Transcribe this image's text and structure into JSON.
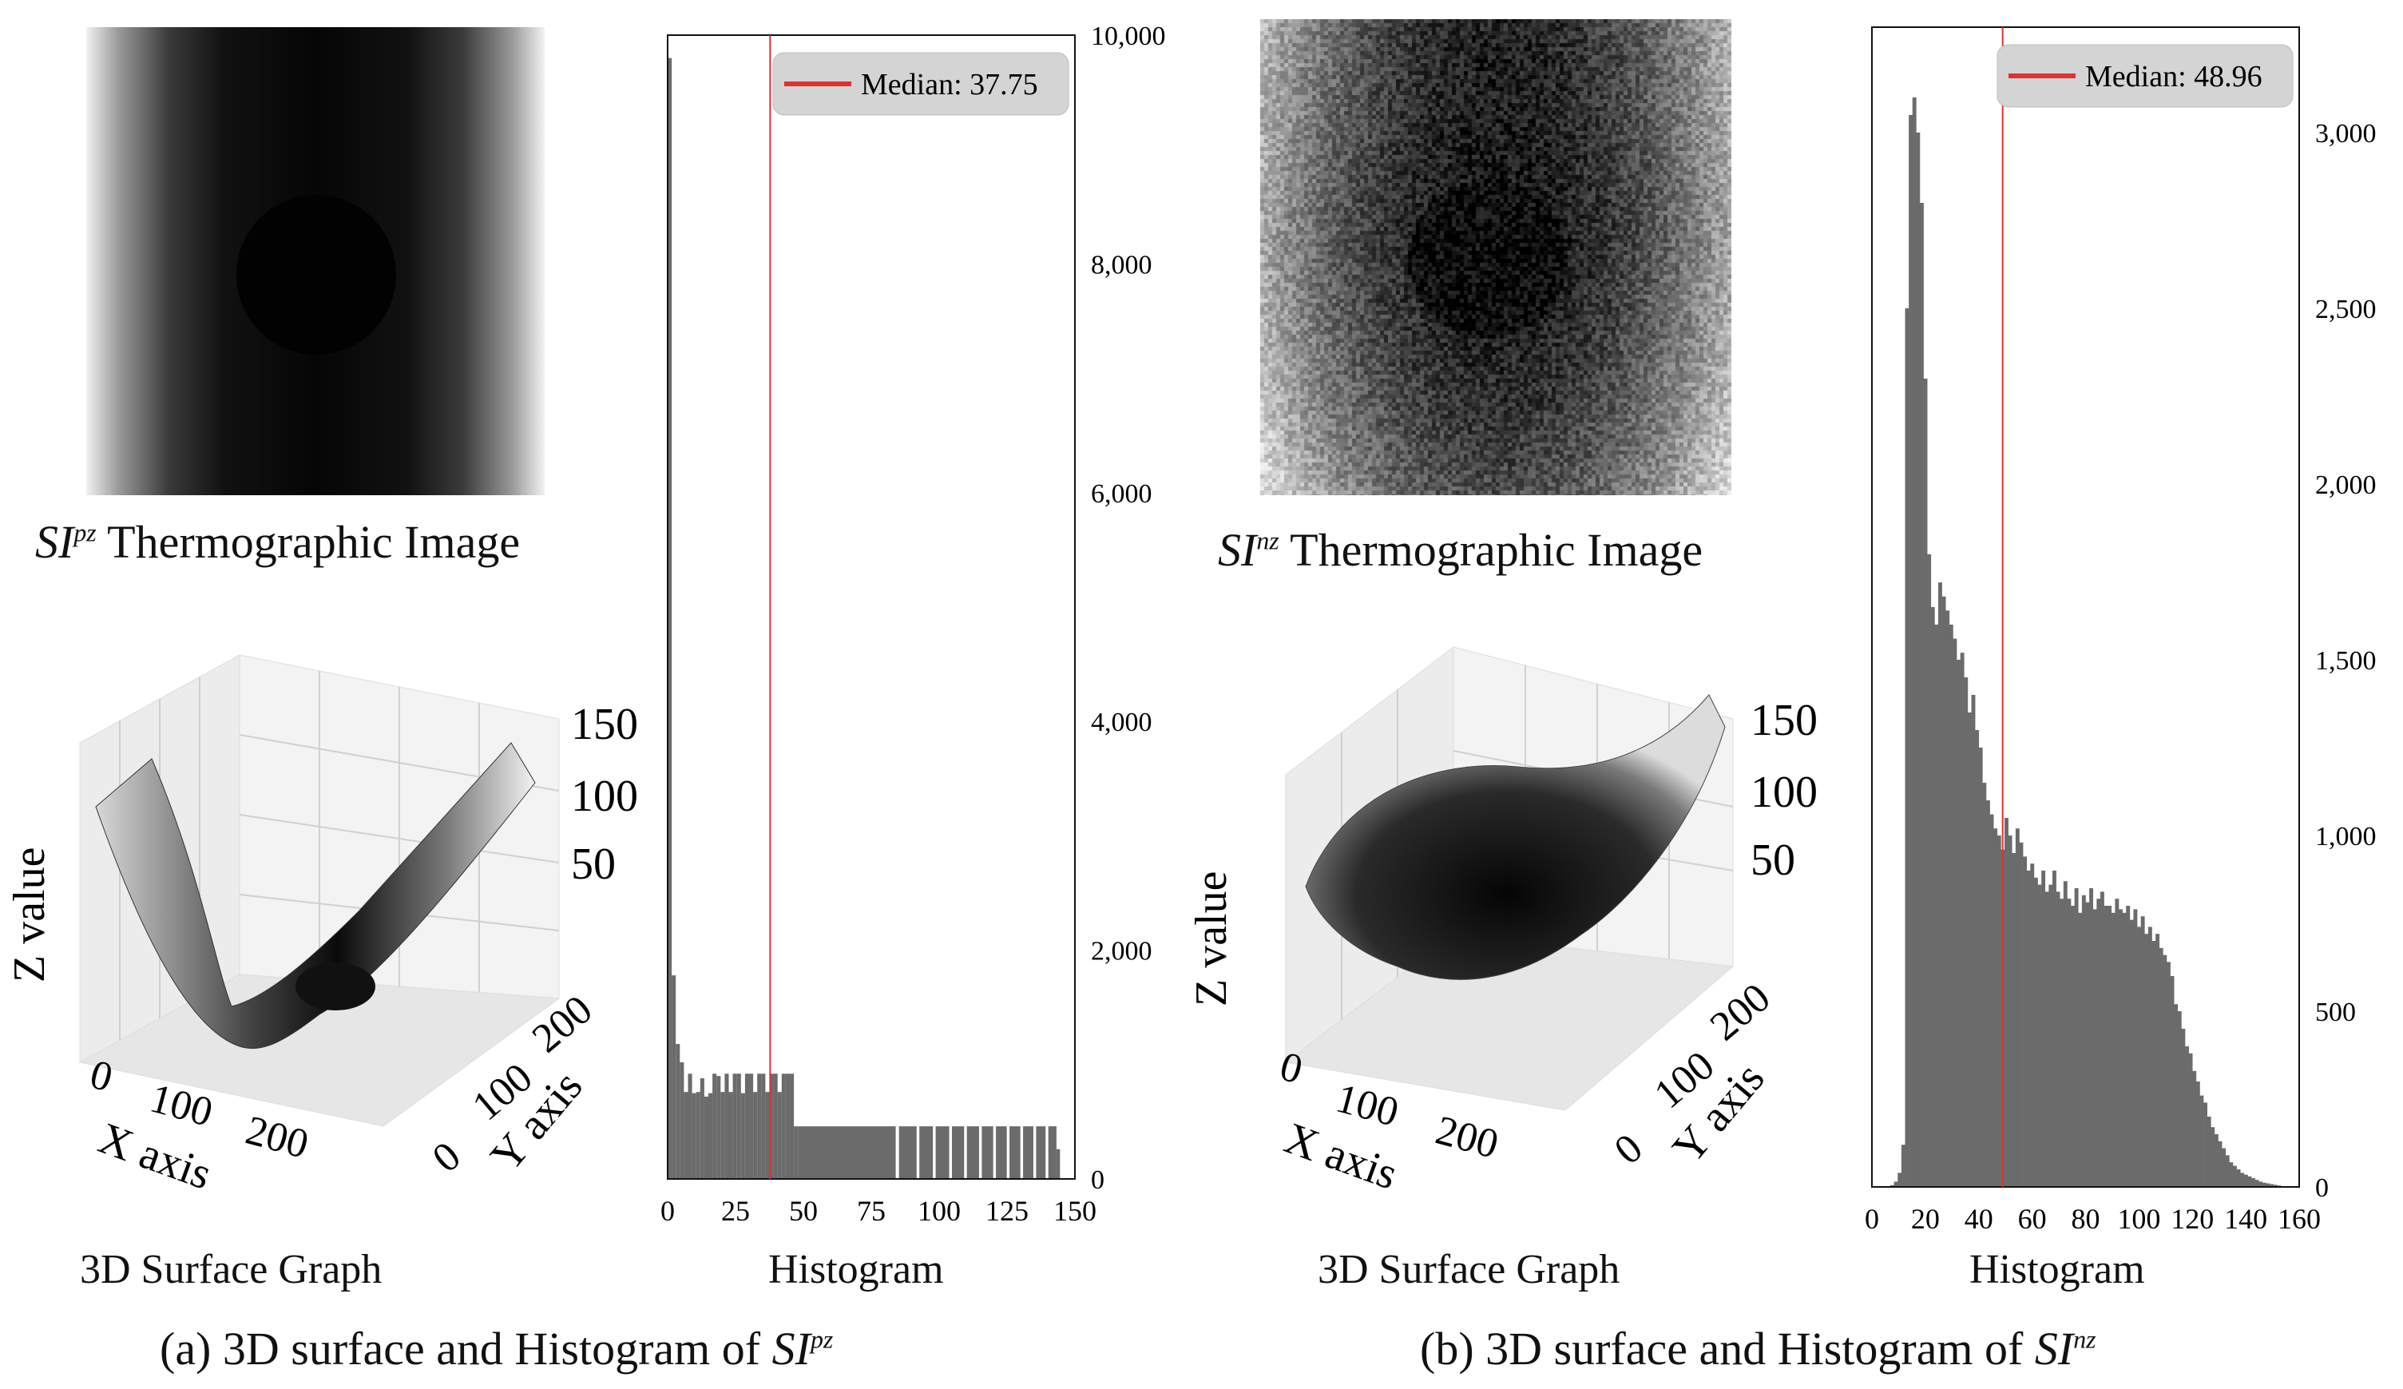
{
  "panel_a": {
    "thermo_caption_prefix": "SI",
    "thermo_caption_sup": "pz",
    "thermo_caption_rest": "Thermographic Image",
    "surface_label": "3D Surface Graph",
    "histogram_label": "Histogram",
    "caption_prefix": "(a) 3D surface and Histogram of",
    "caption_si": "SI",
    "caption_sup": "pz"
  },
  "panel_b": {
    "thermo_caption_prefix": "SI",
    "thermo_caption_sup": "nz",
    "thermo_caption_rest": "Thermographic Image",
    "surface_label": "3D Surface Graph",
    "histogram_label": "Histogram",
    "caption_prefix": "(b) 3D surface and Histogram of",
    "caption_si": "SI",
    "caption_sup": "nz"
  },
  "colors": {
    "bar": "#6b6b6b",
    "median": "#e03030",
    "legend_bg": "#d4d4d4"
  },
  "chart_data": [
    {
      "id": "surface_a",
      "type": "surface",
      "xlabel": "X axis",
      "ylabel": "Y axis",
      "zlabel": "Z value",
      "xticks": [
        "0",
        "100",
        "200"
      ],
      "yticks": [
        "0",
        "100",
        "200"
      ],
      "zticks": [
        "50",
        "100",
        "150"
      ]
    },
    {
      "id": "hist_a",
      "type": "bar",
      "xlim": [
        0,
        150
      ],
      "ylim": [
        0,
        10000
      ],
      "xticks": [
        "0",
        "25",
        "50",
        "75",
        "100",
        "125",
        "150"
      ],
      "yticks": [
        "0",
        "2,000",
        "4,000",
        "6,000",
        "8,000",
        "10,000"
      ],
      "ytick_values": [
        0,
        2000,
        4000,
        6000,
        8000,
        10000
      ],
      "median": 37.75,
      "legend": "Median: 37.75",
      "bins": [
        {
          "x": 0,
          "w": 1.5,
          "v": 9800
        },
        {
          "x": 1.5,
          "w": 1.5,
          "v": 1780
        },
        {
          "x": 3,
          "w": 1.5,
          "v": 1180
        },
        {
          "x": 4.5,
          "w": 1.5,
          "v": 1020
        },
        {
          "x": 6,
          "w": 1.5,
          "v": 760
        },
        {
          "x": 7.5,
          "w": 1.5,
          "v": 920
        },
        {
          "x": 9,
          "w": 1.5,
          "v": 750
        },
        {
          "x": 10.5,
          "w": 1.5,
          "v": 760
        },
        {
          "x": 12,
          "w": 1.5,
          "v": 880
        },
        {
          "x": 13.5,
          "w": 1.5,
          "v": 720
        },
        {
          "x": 15,
          "w": 1.5,
          "v": 750
        },
        {
          "x": 16.5,
          "w": 1.5,
          "v": 920
        },
        {
          "x": 18,
          "w": 1.5,
          "v": 900
        },
        {
          "x": 19.5,
          "w": 1.5,
          "v": 760
        },
        {
          "x": 21,
          "w": 1.5,
          "v": 920
        },
        {
          "x": 22.5,
          "w": 1.5,
          "v": 760
        },
        {
          "x": 24,
          "w": 1.5,
          "v": 920
        },
        {
          "x": 25.5,
          "w": 1.5,
          "v": 920
        },
        {
          "x": 27,
          "w": 1.5,
          "v": 750
        },
        {
          "x": 28.5,
          "w": 1.5,
          "v": 920
        },
        {
          "x": 30,
          "w": 1.5,
          "v": 920
        },
        {
          "x": 31.5,
          "w": 1.5,
          "v": 760
        },
        {
          "x": 33,
          "w": 1.5,
          "v": 920
        },
        {
          "x": 34.5,
          "w": 1.5,
          "v": 920
        },
        {
          "x": 36,
          "w": 1.5,
          "v": 760
        },
        {
          "x": 37.5,
          "w": 1.5,
          "v": 920
        },
        {
          "x": 39,
          "w": 1.5,
          "v": 920
        },
        {
          "x": 40.5,
          "w": 1.5,
          "v": 760
        },
        {
          "x": 42,
          "w": 1.5,
          "v": 920
        },
        {
          "x": 43.5,
          "w": 1.5,
          "v": 920
        },
        {
          "x": 45,
          "w": 1.5,
          "v": 920
        },
        {
          "x": 46.5,
          "w": 1.5,
          "v": 460
        },
        {
          "x": 48,
          "w": 36,
          "v": 460
        },
        {
          "x": 84,
          "w": 1.2,
          "v": 0
        },
        {
          "x": 85.2,
          "w": 6.5,
          "v": 460
        },
        {
          "x": 91.7,
          "w": 1,
          "v": 0
        },
        {
          "x": 92.7,
          "w": 5,
          "v": 460
        },
        {
          "x": 97.7,
          "w": 1,
          "v": 0
        },
        {
          "x": 98.7,
          "w": 5,
          "v": 460
        },
        {
          "x": 103.7,
          "w": 1,
          "v": 0
        },
        {
          "x": 104.7,
          "w": 4.5,
          "v": 460
        },
        {
          "x": 109.2,
          "w": 1,
          "v": 0
        },
        {
          "x": 110.2,
          "w": 4.5,
          "v": 460
        },
        {
          "x": 114.7,
          "w": 1,
          "v": 0
        },
        {
          "x": 115.7,
          "w": 4.2,
          "v": 460
        },
        {
          "x": 119.9,
          "w": 1,
          "v": 0
        },
        {
          "x": 120.9,
          "w": 4,
          "v": 460
        },
        {
          "x": 124.9,
          "w": 1,
          "v": 0
        },
        {
          "x": 125.9,
          "w": 4,
          "v": 460
        },
        {
          "x": 129.9,
          "w": 1,
          "v": 0
        },
        {
          "x": 130.9,
          "w": 3.8,
          "v": 460
        },
        {
          "x": 134.7,
          "w": 1,
          "v": 0
        },
        {
          "x": 135.7,
          "w": 3.5,
          "v": 460
        },
        {
          "x": 139.2,
          "w": 1,
          "v": 0
        },
        {
          "x": 140.2,
          "w": 3,
          "v": 460
        },
        {
          "x": 143.2,
          "w": 1.3,
          "v": 260
        }
      ]
    },
    {
      "id": "surface_b",
      "type": "surface",
      "xlabel": "X axis",
      "ylabel": "Y axis",
      "zlabel": "Z value",
      "xticks": [
        "0",
        "100",
        "200"
      ],
      "yticks": [
        "0",
        "100",
        "200"
      ],
      "zticks": [
        "50",
        "100",
        "150"
      ]
    },
    {
      "id": "hist_b",
      "type": "bar",
      "xlim": [
        0,
        160
      ],
      "ylim": [
        0,
        3300
      ],
      "xticks": [
        "0",
        "20",
        "40",
        "60",
        "80",
        "100",
        "120",
        "140",
        "160"
      ],
      "yticks": [
        "0",
        "500",
        "1,000",
        "1,500",
        "2,000",
        "2,500",
        "3,000"
      ],
      "ytick_values": [
        0,
        500,
        1000,
        1500,
        2000,
        2500,
        3000
      ],
      "median": 48.96,
      "legend": "Median: 48.96",
      "values": [
        0,
        0,
        0,
        0,
        2,
        5,
        15,
        40,
        120,
        2500,
        3050,
        3100,
        3000,
        2800,
        2300,
        1800,
        1650,
        1600,
        1720,
        1680,
        1640,
        1600,
        1560,
        1500,
        1520,
        1450,
        1350,
        1400,
        1300,
        1250,
        1150,
        1100,
        1060,
        1020,
        1000,
        960,
        1050,
        1000,
        950,
        1020,
        980,
        940,
        900,
        920,
        880,
        860,
        900,
        840,
        860,
        900,
        840,
        820,
        870,
        820,
        800,
        850,
        780,
        830,
        810,
        850,
        790,
        820,
        840,
        800,
        800,
        780,
        820,
        790,
        780,
        800,
        760,
        790,
        740,
        770,
        720,
        740,
        700,
        720,
        680,
        660,
        640,
        600,
        520,
        500,
        450,
        400,
        380,
        330,
        300,
        260,
        240,
        200,
        170,
        150,
        130,
        110,
        90,
        70,
        60,
        50,
        40,
        35,
        30,
        25,
        20,
        15,
        12,
        10,
        8,
        6,
        4,
        2,
        0,
        0,
        0,
        0
      ]
    }
  ]
}
